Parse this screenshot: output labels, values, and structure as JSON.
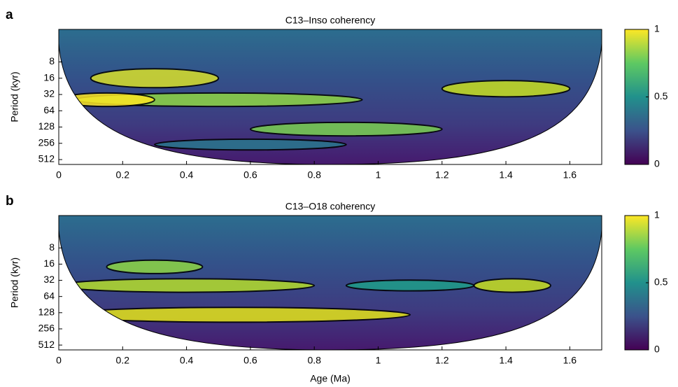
{
  "chart_data": [
    {
      "type": "heatmap",
      "panel_label": "a",
      "title": "C13–Inso coherency",
      "ylabel": "Period (kyr)",
      "xlim": [
        0,
        1.7
      ],
      "xticks": [
        0,
        0.2,
        0.4,
        0.6,
        0.8,
        1,
        1.2,
        1.4,
        1.6
      ],
      "ylim": [
        2,
        630
      ],
      "yticks": [
        8,
        16,
        32,
        64,
        128,
        256,
        512
      ],
      "y_scale": "log2",
      "y_inverted": true,
      "colormap": "viridis",
      "clim": [
        0,
        1
      ],
      "cticks": [
        0,
        0.5,
        1
      ]
    },
    {
      "type": "heatmap",
      "panel_label": "b",
      "title": "C13–O18 coherency",
      "xlabel": "Age (Ma)",
      "ylabel": "Period (kyr)",
      "xlim": [
        0,
        1.7
      ],
      "xticks": [
        0,
        0.2,
        0.4,
        0.6,
        0.8,
        1,
        1.2,
        1.4,
        1.6
      ],
      "ylim": [
        2,
        630
      ],
      "yticks": [
        8,
        16,
        32,
        64,
        128,
        256,
        512
      ],
      "y_scale": "log2",
      "y_inverted": true,
      "colormap": "viridis",
      "clim": [
        0,
        1
      ],
      "cticks": [
        0,
        0.5,
        1
      ]
    }
  ]
}
